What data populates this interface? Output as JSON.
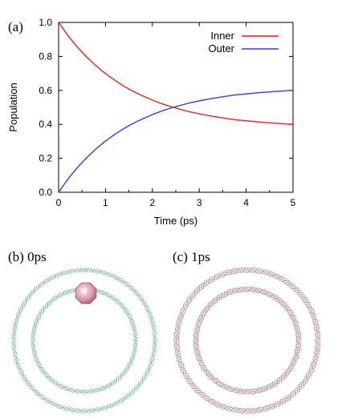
{
  "panels": {
    "a": {
      "label": "(a)"
    },
    "b": {
      "label": "(b) 0ps"
    },
    "c": {
      "label": "(c) 1ps"
    }
  },
  "chart_data": {
    "type": "line",
    "xlabel": "Time (ps)",
    "ylabel": "Population",
    "xlim": [
      0,
      5
    ],
    "ylim": [
      0,
      1
    ],
    "xticks": [
      "0",
      "1",
      "2",
      "3",
      "4",
      "5"
    ],
    "yticks": [
      "0.0",
      "0.2",
      "0.4",
      "0.6",
      "0.8",
      "1.0"
    ],
    "grid": false,
    "legend_position": "top-right",
    "x": [
      0,
      0.25,
      0.5,
      0.75,
      1,
      1.25,
      1.5,
      1.75,
      2,
      2.25,
      2.5,
      2.75,
      3,
      3.25,
      3.5,
      3.75,
      4,
      4.25,
      4.5,
      4.75,
      5
    ],
    "series": [
      {
        "name": "Inner",
        "color": "#ee1c1c",
        "values": [
          1.0,
          0.905,
          0.825,
          0.757,
          0.699,
          0.65,
          0.608,
          0.573,
          0.543,
          0.517,
          0.496,
          0.477,
          0.462,
          0.449,
          0.438,
          0.428,
          0.421,
          0.414,
          0.409,
          0.404,
          0.4
        ]
      },
      {
        "name": "Outer",
        "color": "#2244dd",
        "values": [
          0.0,
          0.095,
          0.175,
          0.243,
          0.301,
          0.35,
          0.392,
          0.427,
          0.457,
          0.483,
          0.504,
          0.523,
          0.538,
          0.551,
          0.562,
          0.572,
          0.579,
          0.586,
          0.591,
          0.596,
          0.6
        ]
      }
    ]
  },
  "colors": {
    "ring_dots": "#7fb8a6",
    "sphere_fill": "#e6a9bd",
    "sphere_edge": "#9a5b6f",
    "ring_pink": "#d98aa6"
  },
  "snapshots": {
    "b": {
      "time_label": "0ps",
      "sphere": true
    },
    "c": {
      "time_label": "1ps",
      "sphere": false
    }
  }
}
